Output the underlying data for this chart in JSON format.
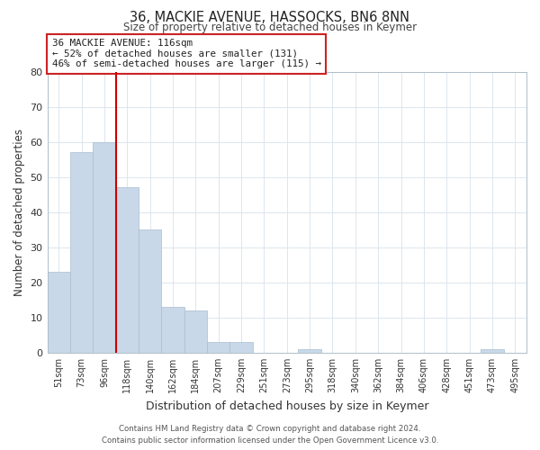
{
  "title": "36, MACKIE AVENUE, HASSOCKS, BN6 8NN",
  "subtitle": "Size of property relative to detached houses in Keymer",
  "xlabel": "Distribution of detached houses by size in Keymer",
  "ylabel": "Number of detached properties",
  "bar_color": "#c8d8e8",
  "bar_edge_color": "#a8bece",
  "vline_color": "#cc0000",
  "vline_x": 2.5,
  "bin_labels": [
    "51sqm",
    "73sqm",
    "96sqm",
    "118sqm",
    "140sqm",
    "162sqm",
    "184sqm",
    "207sqm",
    "229sqm",
    "251sqm",
    "273sqm",
    "295sqm",
    "318sqm",
    "340sqm",
    "362sqm",
    "384sqm",
    "406sqm",
    "428sqm",
    "451sqm",
    "473sqm",
    "495sqm"
  ],
  "bar_heights": [
    23,
    57,
    60,
    47,
    35,
    13,
    12,
    3,
    3,
    0,
    0,
    1,
    0,
    0,
    0,
    0,
    0,
    0,
    0,
    1,
    0
  ],
  "ylim": [
    0,
    80
  ],
  "yticks": [
    0,
    10,
    20,
    30,
    40,
    50,
    60,
    70,
    80
  ],
  "annotation_title": "36 MACKIE AVENUE: 116sqm",
  "annotation_line1": "← 52% of detached houses are smaller (131)",
  "annotation_line2": "46% of semi-detached houses are larger (115) →",
  "footer_line1": "Contains HM Land Registry data © Crown copyright and database right 2024.",
  "footer_line2": "Contains public sector information licensed under the Open Government Licence v3.0.",
  "background_color": "#ffffff",
  "grid_color": "#dce6ee"
}
